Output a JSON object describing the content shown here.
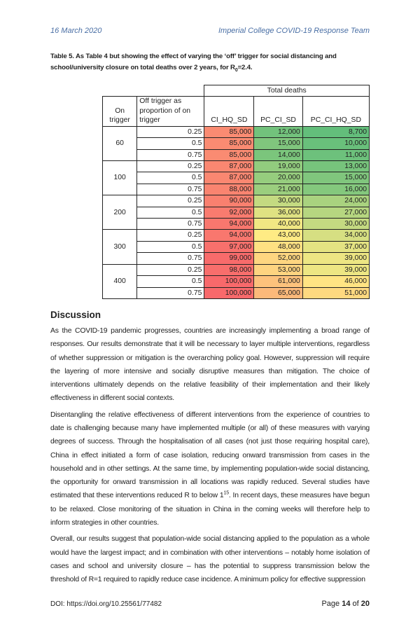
{
  "header": {
    "date": "16 March 2020",
    "team": "Imperial College COVID-19 Response Team"
  },
  "caption": {
    "text_before": "Table 5. As Table 4 but showing the effect of varying the ‘off’ trigger for social distancing and school/university closure on total deaths over 2 years, for R",
    "subscript": "0",
    "text_after": "=2.4."
  },
  "table": {
    "group_header": "Total deaths",
    "columns": [
      "On trigger",
      "Off trigger as proportion of on trigger",
      "CI_HQ_SD",
      "PC_CI_SD",
      "PC_CI_HQ_SD"
    ],
    "color_scale": {
      "low": "#63BE7B",
      "mid": "#FFEB84",
      "high": "#F8696B"
    },
    "groups": [
      {
        "on": "60",
        "rows": [
          [
            "0.25",
            "85,000",
            "12,000",
            "8,700"
          ],
          [
            "0.5",
            "85,000",
            "15,000",
            "10,000"
          ],
          [
            "0.75",
            "85,000",
            "14,000",
            "11,000"
          ]
        ]
      },
      {
        "on": "100",
        "rows": [
          [
            "0.25",
            "87,000",
            "19,000",
            "13,000"
          ],
          [
            "0.5",
            "87,000",
            "20,000",
            "15,000"
          ],
          [
            "0.75",
            "88,000",
            "21,000",
            "16,000"
          ]
        ]
      },
      {
        "on": "200",
        "rows": [
          [
            "0.25",
            "90,000",
            "30,000",
            "24,000"
          ],
          [
            "0.5",
            "92,000",
            "36,000",
            "27,000"
          ],
          [
            "0.75",
            "94,000",
            "40,000",
            "30,000"
          ]
        ]
      },
      {
        "on": "300",
        "rows": [
          [
            "0.25",
            "94,000",
            "43,000",
            "34,000"
          ],
          [
            "0.5",
            "97,000",
            "48,000",
            "37,000"
          ],
          [
            "0.75",
            "99,000",
            "52,000",
            "39,000"
          ]
        ]
      },
      {
        "on": "400",
        "rows": [
          [
            "0.25",
            "98,000",
            "53,000",
            "39,000"
          ],
          [
            "0.5",
            "100,000",
            "61,000",
            "46,000"
          ],
          [
            "0.75",
            "100,000",
            "65,000",
            "51,000"
          ]
        ]
      }
    ]
  },
  "discussion": {
    "heading": "Discussion",
    "p1": "As the COVID-19 pandemic progresses, countries are increasingly implementing a broad range of responses. Our results demonstrate that it will be necessary to layer multiple interventions, regardless of whether suppression or mitigation is the overarching policy goal. However, suppression will require the layering of more intensive and socially disruptive measures than mitigation. The choice of interventions ultimately depends on the relative feasibility of their implementation and their likely effectiveness in different social contexts.",
    "p2_before": "Disentangling the relative effectiveness of different interventions from the experience of countries to date is challenging because many have implemented multiple (or all) of these measures with varying degrees of success. Through the hospitalisation of all cases (not just those requiring hospital care), China in effect initiated a form of case isolation, reducing onward transmission from cases in the household and in other settings. At the same time, by implementing population-wide social distancing, the opportunity for onward transmission in all locations was rapidly reduced. Several studies have estimated that these interventions reduced R to below 1",
    "p2_ref": "15",
    "p2_after": ". In recent days, these measures have begun to be relaxed. Close monitoring of the situation in China in the coming weeks will therefore help to inform strategies in other countries.",
    "p3": "Overall, our results suggest that population-wide social distancing applied to the population as a whole would have the largest impact; and in combination with other interventions – notably home isolation of cases and school and university closure – has the potential to suppress transmission below the threshold of R=1 required to rapidly reduce case incidence. A minimum policy for effective suppression"
  },
  "footer": {
    "doi": "DOI: https://doi.org/10.25561/77482",
    "page_label": "Page ",
    "page": "14",
    "of_label": " of ",
    "total": "20"
  }
}
